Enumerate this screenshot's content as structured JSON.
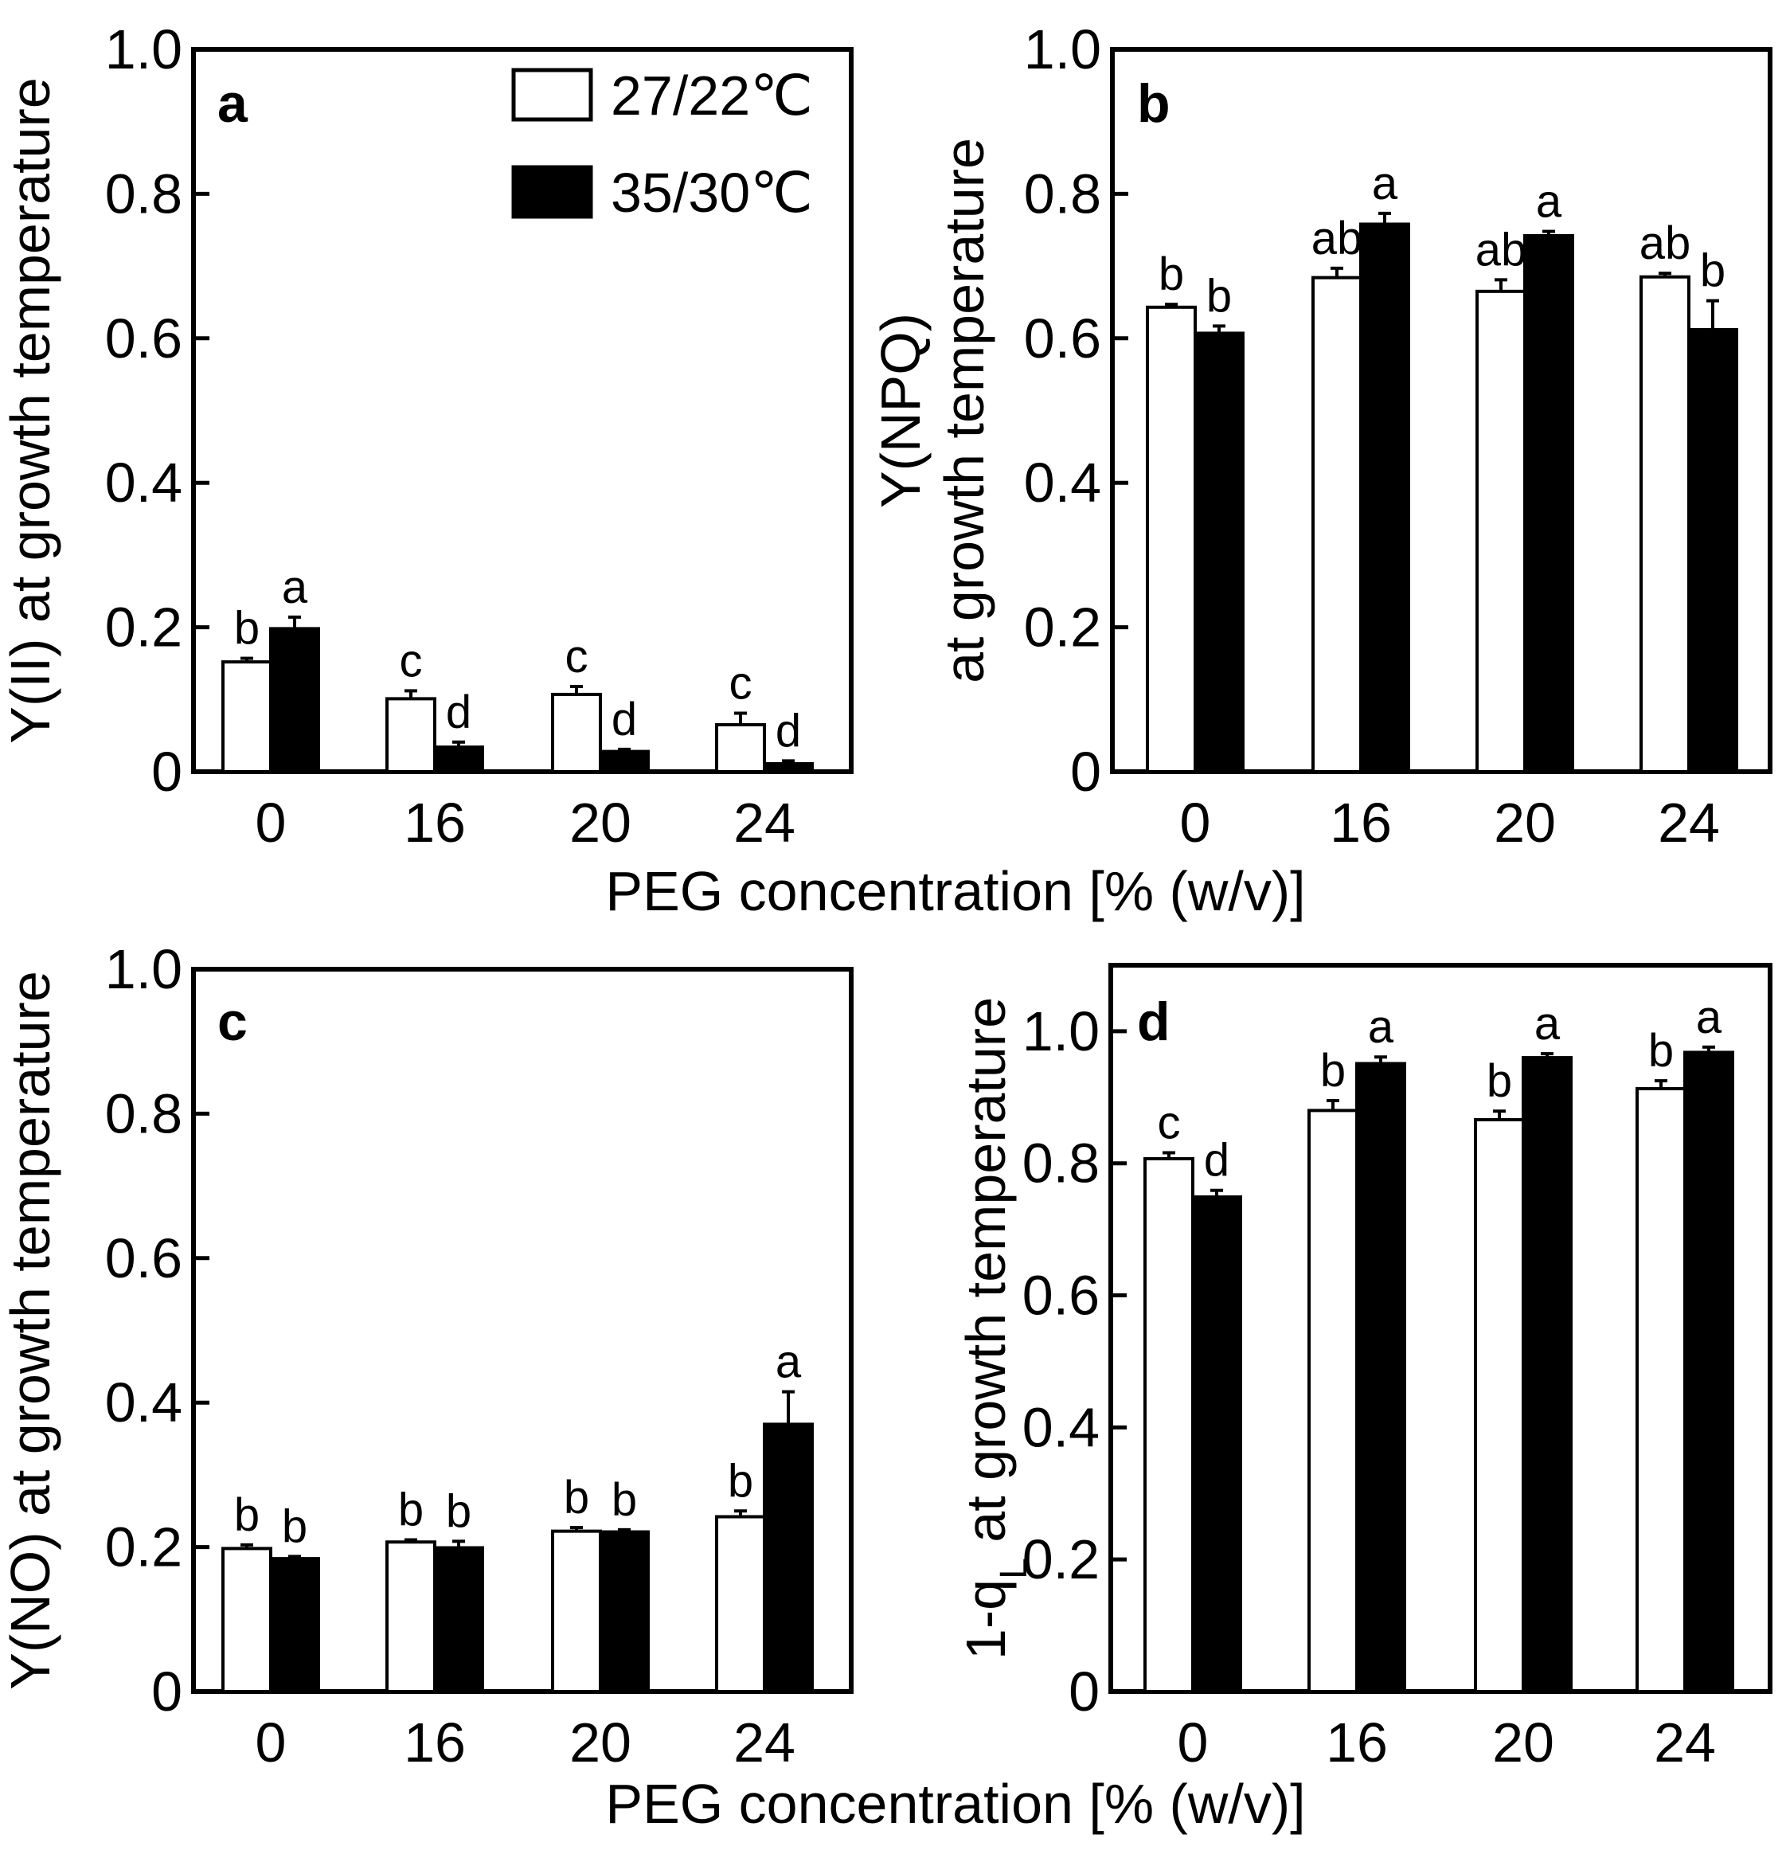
{
  "figure": {
    "shared_xlabel": "PEG concentration [% (w/v)]"
  },
  "legend": {
    "entries": [
      {
        "label": "27/22℃",
        "color": "#ffffff"
      },
      {
        "label": "35/30℃",
        "color": "#000000"
      }
    ]
  },
  "chart_data": [
    {
      "panel": "a",
      "type": "bar",
      "ylabel": "Y(II) at growth temperature",
      "categories": [
        "0",
        "16",
        "20",
        "24"
      ],
      "ylim": [
        0,
        1.0
      ],
      "yticks": [
        0,
        0.2,
        0.4,
        0.6,
        0.8,
        1.0
      ],
      "ytick_labels": [
        "0",
        "0.2",
        "0.4",
        "0.6",
        "0.8",
        "1.0"
      ],
      "series": [
        {
          "name": "27/22℃",
          "color": "#ffffff",
          "values": [
            0.152,
            0.101,
            0.107,
            0.065
          ],
          "errors": [
            0.005,
            0.011,
            0.011,
            0.016
          ],
          "sig": [
            "b",
            "c",
            "c",
            "c"
          ]
        },
        {
          "name": "35/30℃",
          "color": "#000000",
          "values": [
            0.198,
            0.034,
            0.028,
            0.011
          ],
          "errors": [
            0.016,
            0.007,
            0.003,
            0.004
          ],
          "sig": [
            "a",
            "d",
            "d",
            "d"
          ]
        }
      ]
    },
    {
      "panel": "b",
      "type": "bar",
      "ylabel": [
        "Y(NPQ)",
        "at growth temperature"
      ],
      "categories": [
        "0",
        "16",
        "20",
        "24"
      ],
      "ylim": [
        0,
        1.0
      ],
      "yticks": [
        0,
        0.2,
        0.4,
        0.6,
        0.8,
        1.0
      ],
      "ytick_labels": [
        "0",
        "0.2",
        "0.4",
        "0.6",
        "0.8",
        "1.0"
      ],
      "series": [
        {
          "name": "27/22℃",
          "color": "#ffffff",
          "values": [
            0.643,
            0.684,
            0.665,
            0.685
          ],
          "errors": [
            0.004,
            0.013,
            0.016,
            0.005
          ],
          "sig": [
            "b",
            "ab",
            "ab",
            "ab"
          ]
        },
        {
          "name": "35/30℃",
          "color": "#000000",
          "values": [
            0.607,
            0.758,
            0.742,
            0.612
          ],
          "errors": [
            0.01,
            0.015,
            0.006,
            0.04
          ],
          "sig": [
            "b",
            "a",
            "a",
            "b"
          ]
        }
      ]
    },
    {
      "panel": "c",
      "type": "bar",
      "ylabel": "Y(NO) at growth temperature",
      "categories": [
        "0",
        "16",
        "20",
        "24"
      ],
      "ylim": [
        0,
        1.0
      ],
      "yticks": [
        0,
        0.2,
        0.4,
        0.6,
        0.8,
        1.0
      ],
      "ytick_labels": [
        "0",
        "0.2",
        "0.4",
        "0.6",
        "0.8",
        "1.0"
      ],
      "series": [
        {
          "name": "27/22℃",
          "color": "#ffffff",
          "values": [
            0.198,
            0.207,
            0.222,
            0.242
          ],
          "errors": [
            0.005,
            0.003,
            0.005,
            0.008
          ],
          "sig": [
            "b",
            "b",
            "b",
            "b"
          ]
        },
        {
          "name": "35/30℃",
          "color": "#000000",
          "values": [
            0.184,
            0.199,
            0.221,
            0.37
          ],
          "errors": [
            0.003,
            0.009,
            0.003,
            0.045
          ],
          "sig": [
            "b",
            "b",
            "b",
            "a"
          ]
        }
      ]
    },
    {
      "panel": "d",
      "type": "bar",
      "ylabel": {
        "prefix": "1-q",
        "sub": "L",
        "suffix": " at growth temperature"
      },
      "categories": [
        "0",
        "16",
        "20",
        "24"
      ],
      "ylim": [
        0,
        1.1
      ],
      "yticks": [
        0,
        0.2,
        0.4,
        0.6,
        0.8,
        1.0
      ],
      "ytick_labels": [
        "0",
        "0.2",
        "0.4",
        "0.6",
        "0.8",
        "1.0"
      ],
      "series": [
        {
          "name": "27/22℃",
          "color": "#ffffff",
          "values": [
            0.807,
            0.88,
            0.866,
            0.913
          ],
          "errors": [
            0.009,
            0.015,
            0.013,
            0.012
          ],
          "sig": [
            "c",
            "b",
            "b",
            "b"
          ]
        },
        {
          "name": "35/30℃",
          "color": "#000000",
          "values": [
            0.749,
            0.951,
            0.96,
            0.968
          ],
          "errors": [
            0.01,
            0.01,
            0.006,
            0.008
          ],
          "sig": [
            "d",
            "a",
            "a",
            "a"
          ]
        }
      ]
    }
  ]
}
